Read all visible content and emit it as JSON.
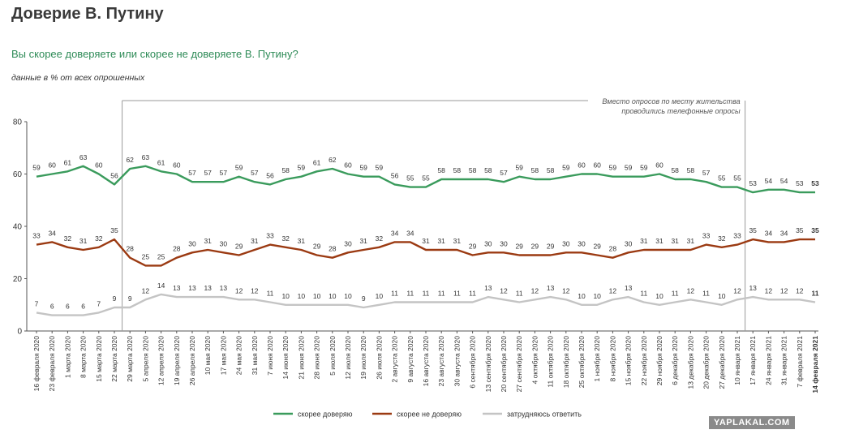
{
  "title": "Доверие В. Путину",
  "subtitle": "Вы скорее доверяете или скорее не доверяете В. Путину?",
  "note": "данные в % от всех опрошенных",
  "annotation": [
    "Вместо опросов по месту жительства",
    "проводились телефонные опросы"
  ],
  "watermark": "YAPLAKAL.COM",
  "chart_data": {
    "type": "line",
    "ylim": [
      0,
      80
    ],
    "yticks": [
      0,
      20,
      40,
      60,
      80
    ],
    "grid": false,
    "legend_position": "bottom",
    "categories": [
      "16 февраля 2020",
      "23 февраля 2020",
      "1 марта 2020",
      "8 марта 2020",
      "15 марта 2020",
      "22 марта 2020",
      "29 марта 2020",
      "5 апреля 2020",
      "12 апреля 2020",
      "19 апреля 2020",
      "26 апреля 2020",
      "10 мая 2020",
      "17 мая 2020",
      "24 мая 2020",
      "31 мая 2020",
      "7 июня 2020",
      "14 июня 2020",
      "21 июня 2020",
      "28 июня 2020",
      "5 июля 2020",
      "12 июля 2020",
      "19 июля 2020",
      "26 июля 2020",
      "2 августа 2020",
      "9 августа 2020",
      "16 августа 2020",
      "23 августа 2020",
      "30 августа 2020",
      "6 сентября 2020",
      "13 сентября 2020",
      "20 сентября 2020",
      "27 сентября 2020",
      "4 октября 2020",
      "11 октября 2020",
      "18 октября 2020",
      "25 октября 2020",
      "1 ноября 2020",
      "8 ноября 2020",
      "15 ноября 2020",
      "22 ноября 2020",
      "29 ноября 2020",
      "6 декабря 2020",
      "13 декабря 2020",
      "20 декабря 2020",
      "27 декабря 2020",
      "10 января 2021",
      "17 января 2021",
      "24 января 2021",
      "31 января 2021",
      "7 февраля 2021",
      "14 февраля 2021"
    ],
    "series": [
      {
        "name": "скорее доверяю",
        "color": "#3a9b5c",
        "values": [
          59,
          60,
          61,
          63,
          60,
          56,
          62,
          63,
          61,
          60,
          57,
          57,
          57,
          59,
          57,
          56,
          58,
          59,
          61,
          62,
          60,
          59,
          59,
          56,
          55,
          55,
          58,
          58,
          58,
          58,
          57,
          59,
          58,
          58,
          59,
          60,
          60,
          59,
          59,
          59,
          60,
          58,
          58,
          57,
          55,
          55,
          53,
          54,
          54,
          53,
          53
        ]
      },
      {
        "name": "скорее не доверяю",
        "color": "#9b3a12",
        "values": [
          33,
          34,
          32,
          31,
          32,
          35,
          28,
          25,
          25,
          28,
          30,
          31,
          30,
          29,
          31,
          33,
          32,
          31,
          29,
          28,
          30,
          31,
          32,
          34,
          34,
          31,
          31,
          31,
          29,
          30,
          30,
          29,
          29,
          29,
          30,
          30,
          29,
          28,
          30,
          31,
          31,
          31,
          31,
          33,
          32,
          33,
          35,
          34,
          34,
          35,
          35
        ]
      },
      {
        "name": "затрудняюсь ответить",
        "color": "#c4c4c4",
        "values": [
          7,
          6,
          6,
          6,
          7,
          9,
          9,
          12,
          14,
          13,
          13,
          13,
          13,
          12,
          12,
          11,
          10,
          10,
          10,
          10,
          10,
          9,
          10,
          11,
          11,
          11,
          11,
          11,
          11,
          13,
          12,
          11,
          12,
          13,
          12,
          10,
          10,
          12,
          13,
          11,
          10,
          11,
          12,
          11,
          10,
          12,
          13,
          12,
          12,
          12,
          11
        ]
      }
    ]
  }
}
